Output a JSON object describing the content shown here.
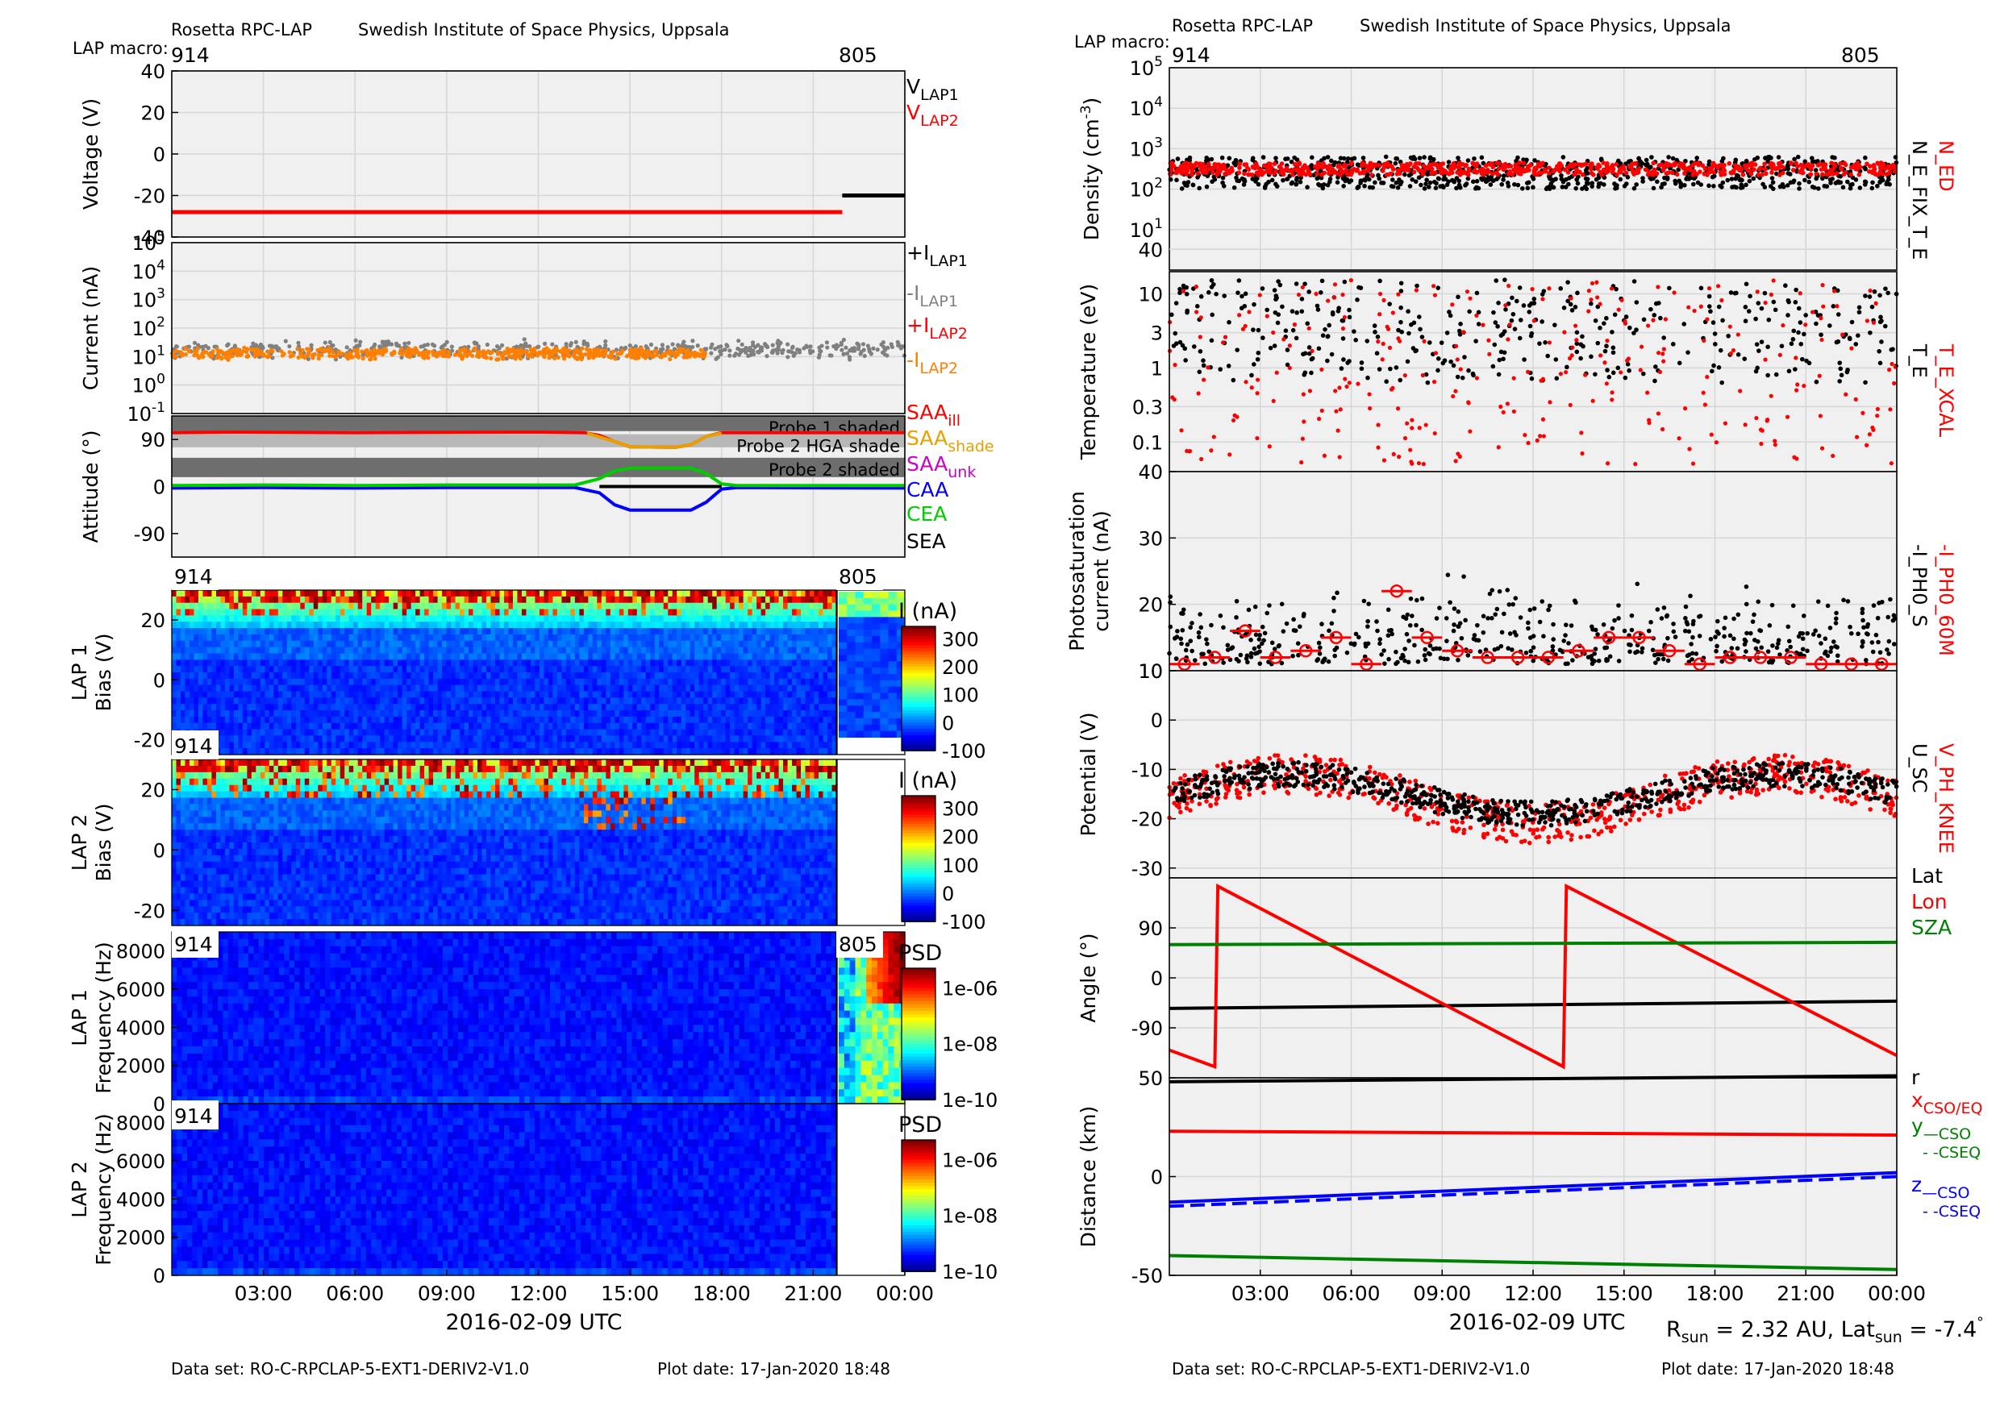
{
  "header": {
    "instrument": "Rosetta RPC-LAP",
    "institute": "Swedish Institute of Space Physics, Uppsala",
    "macro_label": "LAP macro:",
    "macro_start": "914",
    "macro_end": "805"
  },
  "footer": {
    "dataset": "Data set: RO-C-RPCLAP-5-EXT1-DERIV2-V1.0",
    "plot_date": "Plot date: 17-Jan-2020 18:48",
    "rsun_prefix": "R",
    "rsun_sub": "sun",
    "rsun_text": " = 2.32 AU, Lat",
    "latsun_sub": "sun",
    "latsun_text": " = -7.4",
    "deg": "°"
  },
  "time_axis": {
    "label": "2016-02-09 UTC",
    "ticks": [
      "03:00",
      "06:00",
      "09:00",
      "12:00",
      "15:00",
      "18:00",
      "21:00",
      "00:00"
    ],
    "range_hours": [
      0,
      24
    ],
    "macro_switch_hour": 21.95
  },
  "colors": {
    "black": "#000000",
    "red": "#ff0000",
    "gray": "#808080",
    "orange": "#ff8000",
    "blue": "#0000ff",
    "green": "#00cc00",
    "darkgreen": "#008000",
    "magenta": "#cc00cc",
    "saa_orange": "#e8a000",
    "panel_bg": "#f0f0f0",
    "grid": "#d6d6d6"
  },
  "chart_data": [
    {
      "id": "voltage",
      "type": "line",
      "ylabel": "Voltage (V)",
      "ylim": [
        -40,
        40
      ],
      "yticks": [
        "40",
        "20",
        "0",
        "-20",
        "-40"
      ],
      "series": [
        {
          "name": "V",
          "sub": "LAP1",
          "color": "#000000",
          "segments": [
            [
              [
                21.95,
                -20
              ],
              [
                24,
                -20
              ]
            ]
          ]
        },
        {
          "name": "V",
          "sub": "LAP2",
          "color": "#ff0000",
          "segments": [
            [
              [
                0,
                -28
              ],
              [
                21.95,
                -28
              ]
            ]
          ]
        }
      ]
    },
    {
      "id": "current",
      "type": "scatter",
      "ylabel": "Current (nA)",
      "yscale": "log",
      "ylim": [
        -1,
        5
      ],
      "yticks_base": "10",
      "yticks_exp": [
        "5",
        "4",
        "3",
        "2",
        "1",
        "0",
        "-1"
      ],
      "series": [
        {
          "name": "+I",
          "sub": "LAP1",
          "color": "#000000"
        },
        {
          "name": "-I",
          "sub": "LAP1",
          "color": "#808080",
          "level_log10": 1.25,
          "spread": 0.25,
          "x_range": [
            0,
            24
          ]
        },
        {
          "name": "+I",
          "sub": "LAP2",
          "color": "#ff0000"
        },
        {
          "name": "-I",
          "sub": "LAP2",
          "color": "#ff8000",
          "level_log10": 1.1,
          "spread": 0.15,
          "x_range": [
            0,
            17.5
          ]
        }
      ]
    },
    {
      "id": "attitude",
      "type": "line",
      "ylabel": "Attitude (°)",
      "ylim": [
        -135,
        135
      ],
      "yticks": [
        "90",
        "0",
        "-90"
      ],
      "shade_bands": [
        {
          "label": "Probe 1 shaded",
          "range": [
            106,
            135
          ]
        },
        {
          "label": "Probe 2 HGA shade",
          "range": [
            75,
            100
          ]
        },
        {
          "label": "Probe 2 shaded",
          "range": [
            18,
            55
          ]
        }
      ],
      "series": [
        {
          "name": "SAA",
          "sub": "ill",
          "color": "#ff0000",
          "points": [
            [
              0,
              103
            ],
            [
              2,
              104
            ],
            [
              6,
              103
            ],
            [
              12,
              104
            ],
            [
              13.5,
              103
            ],
            [
              14,
              98
            ],
            [
              14.5,
              86
            ],
            [
              15,
              76
            ],
            [
              16.5,
              75
            ],
            [
              17,
              80
            ],
            [
              17.5,
              96
            ],
            [
              18,
              103
            ],
            [
              24,
              103
            ]
          ]
        },
        {
          "name": "SAA",
          "sub": "shade",
          "color": "#e8a000",
          "points": [
            [
              13.6,
              102
            ],
            [
              14.5,
              86
            ],
            [
              15,
              76
            ],
            [
              16.5,
              75
            ],
            [
              17,
              80
            ],
            [
              17.5,
              96
            ],
            [
              18,
              102
            ]
          ]
        },
        {
          "name": "SAA",
          "sub": "unk",
          "color": "#cc00cc",
          "points": []
        },
        {
          "name": "CAA",
          "sub": "",
          "color": "#0000ff",
          "points": [
            [
              0,
              -3
            ],
            [
              3,
              -2
            ],
            [
              6,
              -3
            ],
            [
              9,
              -2
            ],
            [
              13.2,
              -2
            ],
            [
              14,
              -12
            ],
            [
              14.5,
              -35
            ],
            [
              15,
              -45
            ],
            [
              17,
              -45
            ],
            [
              17.5,
              -30
            ],
            [
              18,
              -5
            ],
            [
              18.5,
              -2
            ],
            [
              24,
              -3
            ]
          ]
        },
        {
          "name": "CEA",
          "sub": "",
          "color": "#00cc00",
          "points": [
            [
              0,
              2
            ],
            [
              3,
              3
            ],
            [
              6,
              2
            ],
            [
              9,
              3
            ],
            [
              13.2,
              3
            ],
            [
              14,
              15
            ],
            [
              14.5,
              30
            ],
            [
              15,
              35
            ],
            [
              17,
              35
            ],
            [
              17.5,
              25
            ],
            [
              18,
              5
            ],
            [
              18.5,
              2
            ],
            [
              24,
              2
            ]
          ]
        },
        {
          "name": "SEA",
          "sub": "",
          "color": "#000000",
          "points": [
            [
              14,
              0
            ],
            [
              18,
              0
            ]
          ]
        }
      ]
    },
    {
      "id": "lap1_bias",
      "type": "heatmap",
      "ylabel": [
        "LAP 1",
        "Bias (V)"
      ],
      "ylim": [
        -25,
        30
      ],
      "yticks": [
        "20",
        "0",
        "-20"
      ],
      "colorbar": {
        "label": "I (nA)",
        "range": [
          -100,
          350
        ],
        "ticks": [
          "300",
          "200",
          "100",
          "0",
          "-100"
        ]
      },
      "macro_labels": [
        "914",
        "805"
      ]
    },
    {
      "id": "lap2_bias",
      "type": "heatmap",
      "ylabel": [
        "LAP 2",
        "Bias (V)"
      ],
      "ylim": [
        -25,
        30
      ],
      "yticks": [
        "20",
        "0",
        "-20"
      ],
      "colorbar": {
        "label": "I (nA)",
        "range": [
          -100,
          350
        ],
        "ticks": [
          "300",
          "200",
          "100",
          "0",
          "-100"
        ]
      },
      "macro_labels": [
        "914"
      ]
    },
    {
      "id": "lap1_freq",
      "type": "heatmap",
      "ylabel": [
        "LAP 1",
        "Frequency (Hz)"
      ],
      "ylim": [
        0,
        9000
      ],
      "yticks": [
        "8000",
        "6000",
        "4000",
        "2000",
        "0"
      ],
      "colorbar": {
        "label": "PSD",
        "range": [
          -10,
          -5
        ],
        "ticks": [
          "1e-06",
          "1e-08",
          "1e-10"
        ]
      },
      "macro_labels": [
        "914",
        "805"
      ]
    },
    {
      "id": "lap2_freq",
      "type": "heatmap",
      "ylabel": [
        "LAP 2",
        "Frequency (Hz)"
      ],
      "ylim": [
        0,
        9000
      ],
      "yticks": [
        "8000",
        "6000",
        "4000",
        "2000",
        "0"
      ],
      "colorbar": {
        "label": "PSD",
        "range": [
          -10,
          -5
        ],
        "ticks": [
          "1e-06",
          "1e-08",
          "1e-10"
        ]
      },
      "macro_labels": [
        "914"
      ]
    },
    {
      "id": "density",
      "type": "scatter",
      "ylabel": "Density (cm",
      "ylabel_sup": "-3",
      "ylabel_end": ")",
      "yscale": "log",
      "ylim": [
        0,
        5
      ],
      "yticks_base": "10",
      "yticks_exp": [
        "5",
        "4",
        "3",
        "2",
        "1"
      ],
      "series": [
        {
          "name": "N_ED",
          "color": "#ff0000",
          "level_log10": 2.5,
          "spread": 0.15
        },
        {
          "name": "N_E_FIX_T_E",
          "color": "#000000",
          "level_log10": 2.4,
          "spread": 0.4
        }
      ]
    },
    {
      "id": "temperature",
      "type": "scatter",
      "ylabel": "Temperature (eV)",
      "yscale": "log",
      "ylim": [
        -1.4,
        1.3
      ],
      "yticks": [
        "40",
        "10",
        "3",
        "1",
        "0.3",
        "0.1"
      ],
      "series": [
        {
          "name": "T_E_XCAL",
          "color": "#ff0000"
        },
        {
          "name": "T_E",
          "color": "#000000"
        }
      ]
    },
    {
      "id": "photosaturation",
      "type": "scatter",
      "ylabel": [
        "Photosaturation",
        "current (nA)"
      ],
      "ylim": [
        10,
        40
      ],
      "yticks": [
        "40",
        "30",
        "20",
        "10"
      ],
      "series": [
        {
          "name": "-I_PH0_60M",
          "color": "#ff0000",
          "x": [
            0.5,
            1.5,
            2.5,
            3.5,
            4.5,
            5.5,
            6.5,
            7.5,
            8.5,
            9.5,
            10.5,
            11.5,
            12.5,
            13.5,
            14.5,
            15.5,
            16.5,
            17.5,
            18.5,
            19.5,
            20.5,
            21.5,
            22.5,
            23.5
          ],
          "y": [
            11,
            12,
            16,
            12,
            13,
            15,
            11,
            22,
            15,
            13,
            12,
            12,
            12,
            13,
            15,
            15,
            13,
            11,
            12,
            12,
            12,
            11,
            11,
            11
          ]
        },
        {
          "name": "-I_PH0_S",
          "color": "#000000"
        }
      ]
    },
    {
      "id": "potential",
      "type": "scatter",
      "ylabel": "Potential (V)",
      "ylim": [
        -32,
        10
      ],
      "yticks": [
        "10",
        "0",
        "-10",
        "-20",
        "-30"
      ],
      "series": [
        {
          "name": "V_PH_KNEE",
          "color": "#ff0000"
        },
        {
          "name": "U_SC",
          "color": "#000000"
        }
      ]
    },
    {
      "id": "angle",
      "type": "line",
      "ylabel": "Angle (°)",
      "ylim": [
        -180,
        180
      ],
      "yticks": [
        "90",
        "0",
        "-90"
      ],
      "series": [
        {
          "name": "Lat",
          "color": "#000000",
          "points": [
            [
              0,
              -55
            ],
            [
              24,
              -42
            ]
          ]
        },
        {
          "name": "Lon",
          "color": "#ff0000",
          "points": [
            [
              0,
              -130
            ],
            [
              1.5,
              -160
            ],
            [
              1.6,
              165
            ],
            [
              13,
              -160
            ],
            [
              13.1,
              165
            ],
            [
              24,
              -140
            ]
          ]
        },
        {
          "name": "SZA",
          "color": "#008000",
          "points": [
            [
              0,
              60
            ],
            [
              24,
              64
            ]
          ]
        }
      ]
    },
    {
      "id": "distance",
      "type": "line",
      "ylabel": "Distance (km)",
      "ylim": [
        -50,
        50
      ],
      "yticks": [
        "50",
        "0",
        "-50"
      ],
      "legend": [
        {
          "name": "r",
          "sub": "",
          "color": "#000000"
        },
        {
          "name": "x",
          "sub": "CSO/EQ",
          "color": "#ff0000"
        },
        {
          "name": "y",
          "sub": "—CSO",
          "sub2": "- -CSEQ",
          "color": "#008000"
        },
        {
          "name": "z",
          "sub": "—CSO",
          "sub2": "- -CSEQ",
          "color": "#0000ff"
        }
      ],
      "series": [
        {
          "name": "r",
          "color": "#000000",
          "points": [
            [
              0,
              48
            ],
            [
              24,
              51
            ]
          ]
        },
        {
          "name": "x",
          "color": "#ff0000",
          "points": [
            [
              0,
              23
            ],
            [
              24,
              21
            ]
          ]
        },
        {
          "name": "y",
          "color": "#008000",
          "points": [
            [
              0,
              -40
            ],
            [
              24,
              -47
            ]
          ]
        },
        {
          "name": "z",
          "color": "#0000ff",
          "points": [
            [
              0,
              -13
            ],
            [
              24,
              2
            ]
          ]
        },
        {
          "name": "z CSEQ",
          "color": "#0000ff",
          "dashed": true,
          "points": [
            [
              0,
              -15
            ],
            [
              24,
              0
            ]
          ]
        }
      ]
    }
  ]
}
